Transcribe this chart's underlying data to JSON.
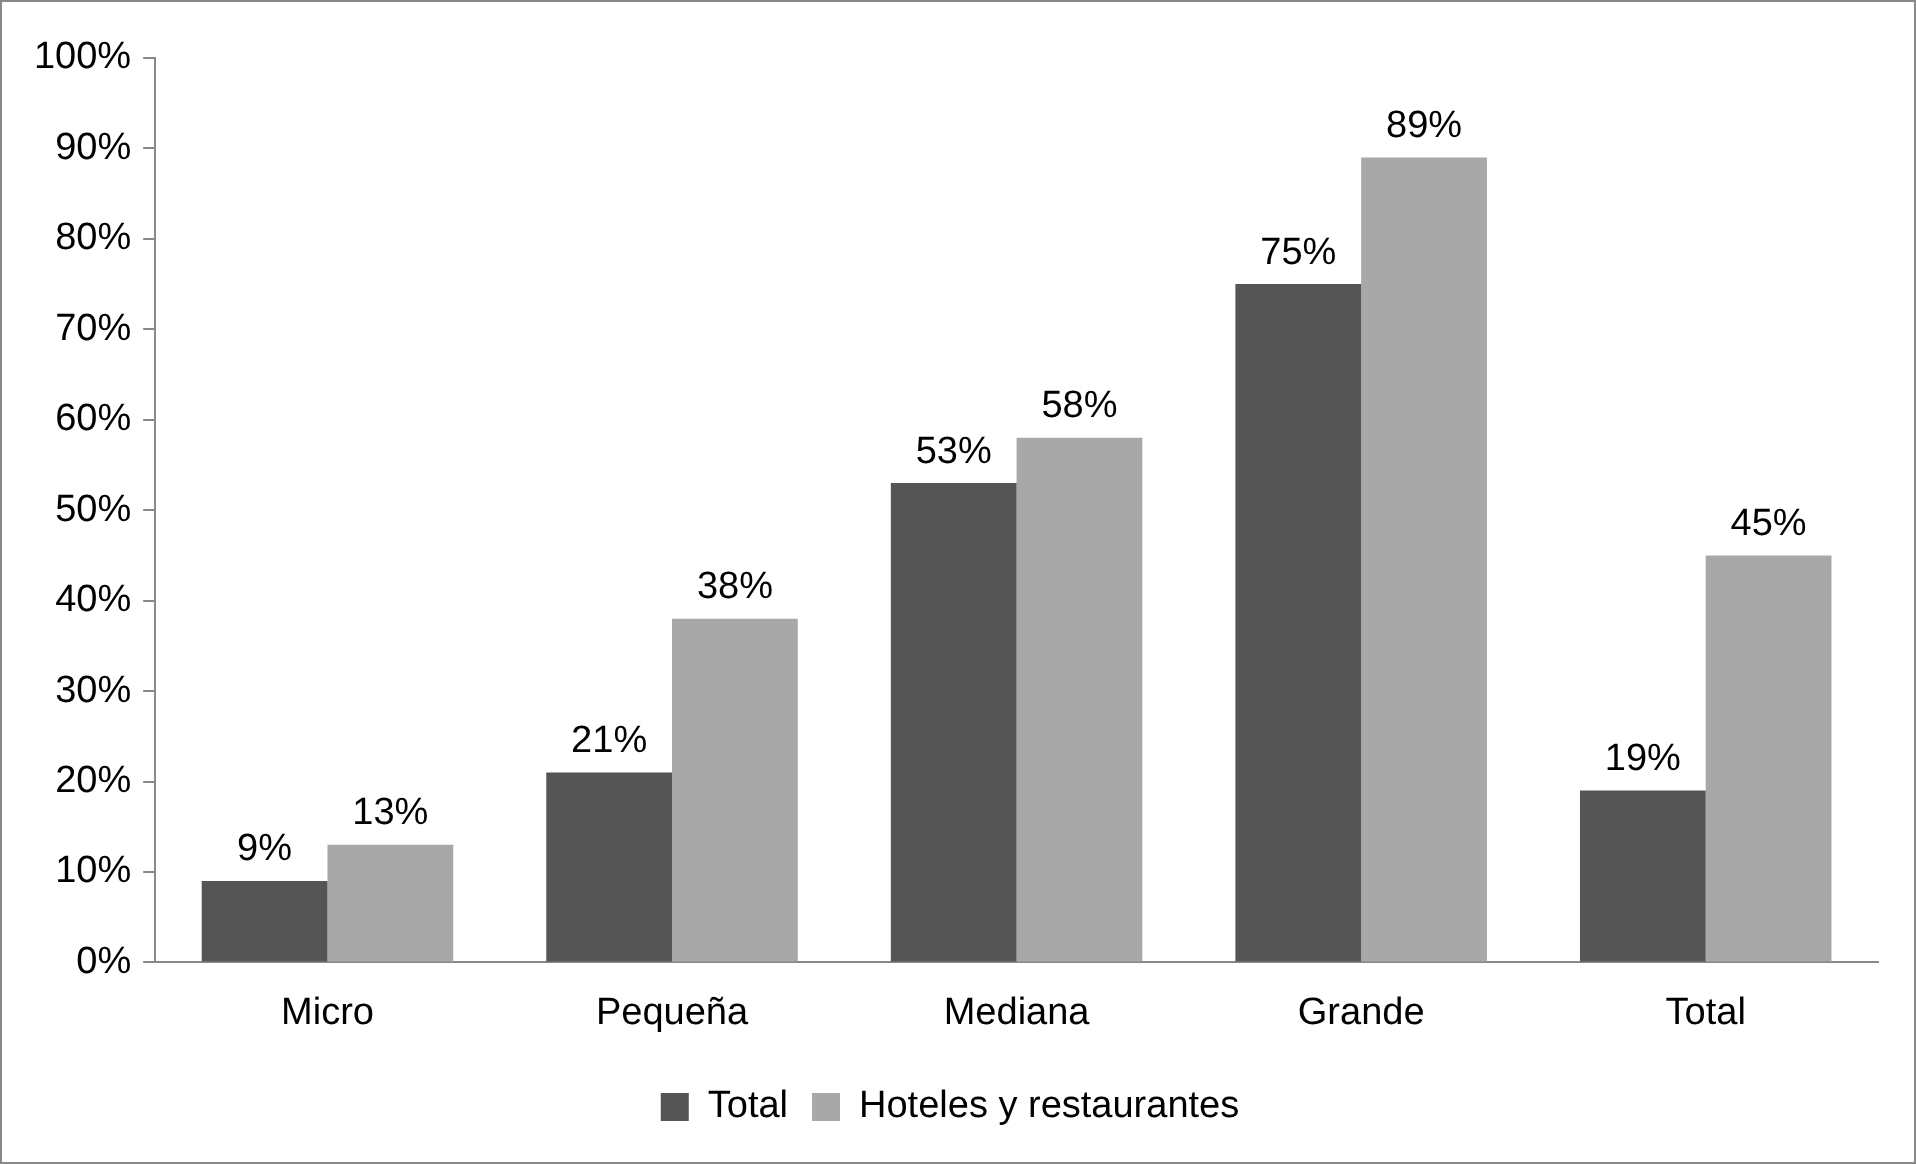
{
  "chart_data": {
    "type": "bar",
    "categories": [
      "Micro",
      "Pequeña",
      "Mediana",
      "Grande",
      "Total"
    ],
    "series": [
      {
        "name": "Total",
        "color": "#555555",
        "values": [
          9,
          21,
          53,
          75,
          19
        ],
        "value_labels": [
          "9%",
          "21%",
          "53%",
          "75%",
          "19%"
        ]
      },
      {
        "name": "Hoteles y restaurantes",
        "color": "#a8a8a8",
        "values": [
          13,
          38,
          58,
          89,
          45
        ],
        "value_labels": [
          "13%",
          "38%",
          "58%",
          "89%",
          "45%"
        ]
      }
    ],
    "ylim": [
      0,
      100
    ],
    "yticks": [
      {
        "value": 0,
        "label": "0%"
      },
      {
        "value": 10,
        "label": "10%"
      },
      {
        "value": 20,
        "label": "20%"
      },
      {
        "value": 30,
        "label": "30%"
      },
      {
        "value": 40,
        "label": "40%"
      },
      {
        "value": 50,
        "label": "50%"
      },
      {
        "value": 60,
        "label": "60%"
      },
      {
        "value": 70,
        "label": "70%"
      },
      {
        "value": 80,
        "label": "80%"
      },
      {
        "value": 90,
        "label": "90%"
      },
      {
        "value": 100,
        "label": "100%"
      }
    ],
    "grid": false,
    "legend": "bottom"
  }
}
